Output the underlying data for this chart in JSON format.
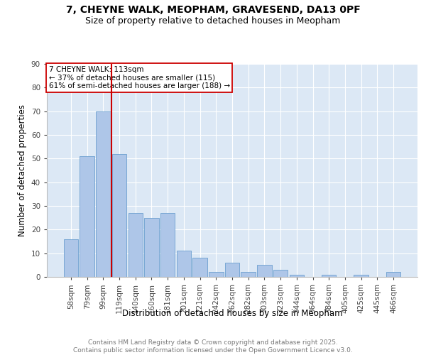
{
  "title_line1": "7, CHEYNE WALK, MEOPHAM, GRAVESEND, DA13 0PF",
  "title_line2": "Size of property relative to detached houses in Meopham",
  "xlabel": "Distribution of detached houses by size in Meopham",
  "ylabel": "Number of detached properties",
  "categories": [
    "58sqm",
    "79sqm",
    "99sqm",
    "119sqm",
    "140sqm",
    "160sqm",
    "181sqm",
    "201sqm",
    "221sqm",
    "242sqm",
    "262sqm",
    "282sqm",
    "303sqm",
    "323sqm",
    "344sqm",
    "364sqm",
    "384sqm",
    "405sqm",
    "425sqm",
    "445sqm",
    "466sqm"
  ],
  "values": [
    16,
    51,
    70,
    52,
    27,
    25,
    27,
    11,
    8,
    2,
    6,
    2,
    5,
    3,
    1,
    0,
    1,
    0,
    1,
    0,
    2
  ],
  "bar_color": "#aec6e8",
  "bar_edge_color": "#6ca0d0",
  "vline_x_index": 2.5,
  "vline_color": "#cc0000",
  "annotation_text": "7 CHEYNE WALK: 113sqm\n← 37% of detached houses are smaller (115)\n61% of semi-detached houses are larger (188) →",
  "annotation_box_color": "#ffffff",
  "annotation_box_edge": "#cc0000",
  "ylim": [
    0,
    90
  ],
  "yticks": [
    0,
    10,
    20,
    30,
    40,
    50,
    60,
    70,
    80,
    90
  ],
  "background_color": "#dce8f5",
  "footer_text": "Contains HM Land Registry data © Crown copyright and database right 2025.\nContains public sector information licensed under the Open Government Licence v3.0.",
  "title_fontsize": 10,
  "subtitle_fontsize": 9,
  "axis_label_fontsize": 8.5,
  "tick_fontsize": 7.5,
  "annotation_fontsize": 7.5,
  "footer_fontsize": 6.5
}
